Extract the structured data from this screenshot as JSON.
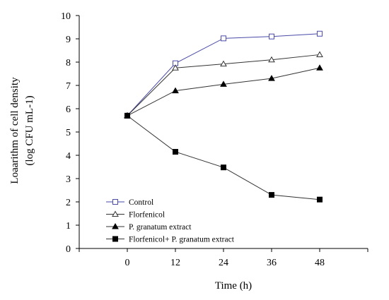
{
  "chart_data": {
    "type": "line",
    "xlabel": "Time (h)",
    "ylabel_line1": "Loaarithm of cell density",
    "ylabel_line2": "(log CFU mL-1)",
    "x": [
      0,
      12,
      24,
      36,
      48
    ],
    "x_ticks": [
      "0",
      "12",
      "24",
      "36",
      "48"
    ],
    "xlim": [
      -12,
      60
    ],
    "ylim": [
      0,
      10
    ],
    "y_ticks": [
      "0",
      "1",
      "2",
      "3",
      "4",
      "5",
      "6",
      "7",
      "8",
      "9",
      "10"
    ],
    "grid": false,
    "legend_position": "bottom-left",
    "series": [
      {
        "name": "Control",
        "values": [
          5.7,
          7.95,
          9.02,
          9.1,
          9.22
        ],
        "color": "#4a4aa8",
        "marker": "open-square"
      },
      {
        "name": "Florfenicol",
        "values": [
          5.7,
          7.75,
          7.92,
          8.1,
          8.32
        ],
        "color": "#333333",
        "marker": "open-triangle"
      },
      {
        "name": "P. granatum extract",
        "values": [
          5.7,
          6.77,
          7.05,
          7.3,
          7.75
        ],
        "color": "#333333",
        "marker": "filled-triangle"
      },
      {
        "name": "Florfenicol+ P. granatum extract",
        "values": [
          5.7,
          4.15,
          3.48,
          2.3,
          2.1
        ],
        "color": "#333333",
        "marker": "filled-square"
      }
    ]
  }
}
